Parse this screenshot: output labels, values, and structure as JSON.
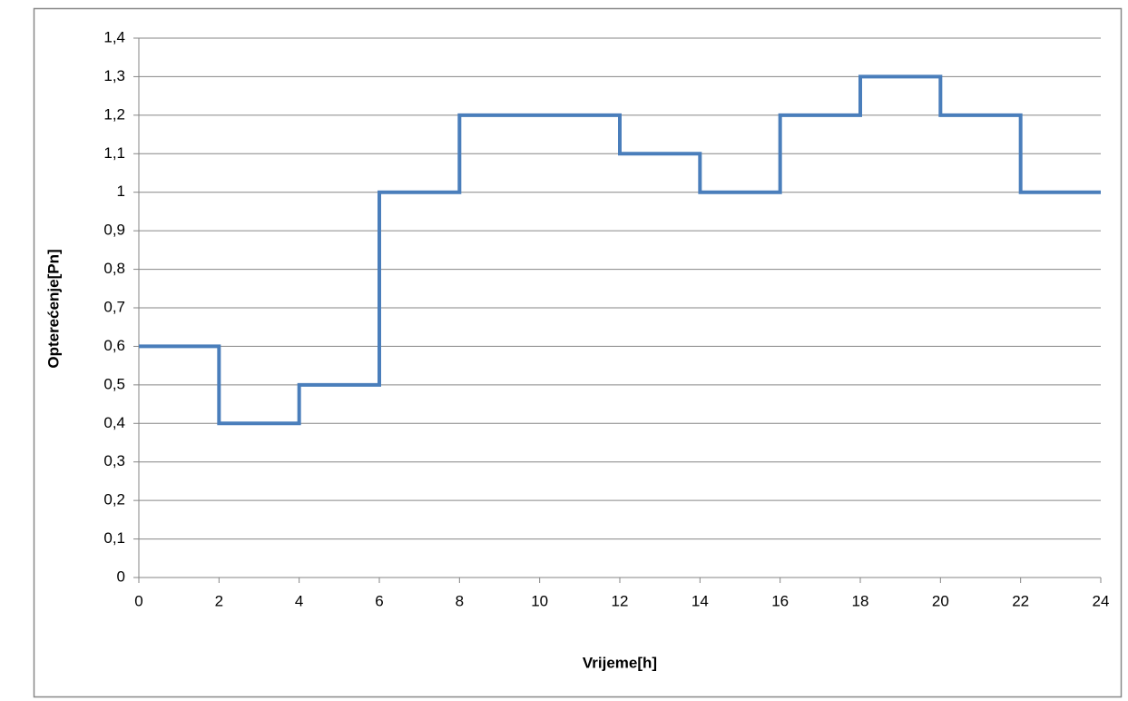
{
  "chart_data": {
    "type": "line",
    "step": "post",
    "x_label": "Vrijeme[h]",
    "y_label": "Opterećenje[Pn]",
    "x": [
      0,
      2,
      4,
      6,
      8,
      10,
      12,
      14,
      16,
      18,
      20,
      22,
      24
    ],
    "series": [
      {
        "color": "#4a7ebb",
        "values": [
          0.6,
          0.4,
          0.5,
          1,
          1.2,
          1.2,
          1.1,
          1,
          1.2,
          1.3,
          1.2,
          1,
          1
        ]
      }
    ],
    "xlim": [
      0,
      24
    ],
    "xticks": [
      0,
      2,
      4,
      6,
      8,
      10,
      12,
      14,
      16,
      18,
      20,
      22,
      24
    ],
    "ylim": [
      0,
      1.4
    ],
    "yticks": [
      0,
      {
        "value": 0.1,
        "label": "0,1"
      },
      {
        "value": 0.2,
        "label": "0,2"
      },
      {
        "value": 0.3,
        "label": "0,3"
      },
      {
        "value": 0.4,
        "label": "0,4"
      },
      {
        "value": 0.5,
        "label": "0,5"
      },
      {
        "value": 0.6,
        "label": "0,6"
      },
      {
        "value": 0.7,
        "label": "0,7"
      },
      {
        "value": 0.8,
        "label": "0,8"
      },
      {
        "value": 0.9,
        "label": "0,9"
      },
      1,
      {
        "value": 1.1,
        "label": "1,1"
      },
      {
        "value": 1.2,
        "label": "1,2"
      },
      {
        "value": 1.3,
        "label": "1,3"
      },
      {
        "value": 1.4,
        "label": "1,4"
      }
    ],
    "grid": true
  }
}
